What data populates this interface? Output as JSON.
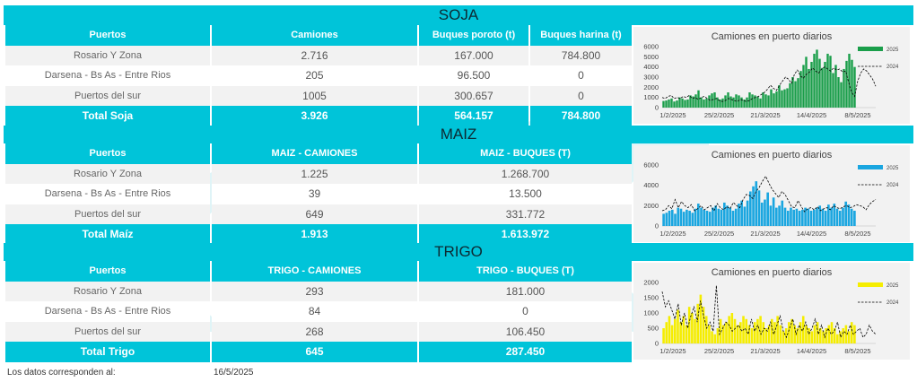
{
  "soja": {
    "title": "SOJA",
    "headers": [
      "Puertos",
      "Camiones",
      "Buques poroto (t)",
      "Buques harina (t)"
    ],
    "rows": [
      [
        "Rosario Y Zona",
        "2.716",
        "167.000",
        "784.800"
      ],
      [
        "Darsena - Bs As - Entre Rios",
        "205",
        "96.500",
        "0"
      ],
      [
        "Puertos del sur",
        "1005",
        "300.657",
        "0"
      ]
    ],
    "total": [
      "Total Soja",
      "3.926",
      "564.157",
      "784.800"
    ]
  },
  "maiz": {
    "title": "MAIZ",
    "headers": [
      "Puertos",
      "MAIZ - CAMIONES",
      "MAIZ - BUQUES (T)"
    ],
    "rows": [
      [
        "Rosario Y Zona",
        "1.225",
        "1.268.700"
      ],
      [
        "Darsena - Bs As - Entre Rios",
        "39",
        "13.500"
      ],
      [
        "Puertos del sur",
        "649",
        "331.772"
      ]
    ],
    "total": [
      "Total Maíz",
      "1.913",
      "1.613.972"
    ]
  },
  "trigo": {
    "title": "TRIGO",
    "headers": [
      "Puertos",
      "TRIGO - CAMIONES",
      "TRIGO - BUQUES (T)"
    ],
    "rows": [
      [
        "Rosario Y Zona",
        "293",
        "181.000"
      ],
      [
        "Darsena - Bs As - Entre Rios",
        "84",
        "0"
      ],
      [
        "Puertos del sur",
        "268",
        "106.450"
      ]
    ],
    "total": [
      "Total Trigo",
      "645",
      "287.450"
    ]
  },
  "footer": {
    "label": "Los datos corresponden al:",
    "date": "16/5/2025"
  },
  "chart_data": [
    {
      "type": "bar",
      "title": "Camiones en puerto diarios",
      "x_ticks": [
        "1/2/2025",
        "25/2/2025",
        "21/3/2025",
        "14/4/2025",
        "8/5/2025"
      ],
      "ylim": [
        0,
        6000
      ],
      "y_ticks": [
        0,
        1000,
        2000,
        3000,
        4000,
        5000,
        6000
      ],
      "legend_position": "top-right",
      "colors": {
        "2025": "#1a9e4a",
        "2024": "#000000"
      },
      "series": [
        {
          "name": "2025",
          "kind": "bar",
          "values": [
            650,
            700,
            800,
            900,
            600,
            700,
            1000,
            900,
            750,
            800,
            1200,
            1100,
            1300,
            1700,
            1000,
            800,
            900,
            1200,
            1400,
            1500,
            1000,
            800,
            900,
            1200,
            1500,
            1100,
            1000,
            1300,
            1200,
            1000,
            800,
            1000,
            1500,
            1300,
            1200,
            1100,
            900,
            1500,
            1300,
            1200,
            1800,
            1400,
            1600,
            2200,
            1700,
            1800,
            1900,
            2400,
            3000,
            2600,
            2900,
            3600,
            4200,
            5000,
            3800,
            4500,
            5300,
            5700,
            4800,
            3900,
            4500,
            5300,
            5100,
            3400,
            4200,
            3000,
            2500,
            3800,
            4600,
            5300,
            4700,
            4000
          ]
        },
        {
          "name": "2024",
          "kind": "line",
          "values": [
            1000,
            900,
            1100,
            1200,
            900,
            1000,
            900,
            1100,
            1000,
            1200,
            900,
            1000,
            800,
            1000,
            1100,
            900,
            700,
            800,
            900,
            700,
            600,
            700,
            900,
            800,
            700,
            600,
            800,
            700,
            600,
            700,
            900,
            1000,
            1100,
            1300,
            1500,
            1800,
            2200,
            1900,
            1700,
            2200,
            2600,
            3000,
            2800,
            2400,
            3300,
            3700,
            3100,
            2900,
            3300,
            3500,
            3900,
            3600,
            3400,
            3800,
            4000,
            3800,
            3600,
            3900,
            3700,
            3800,
            3500,
            3600,
            2500,
            1500,
            1100,
            2600,
            3400,
            3800,
            3600,
            3200,
            2800,
            2100
          ]
        }
      ]
    },
    {
      "type": "bar",
      "title": "Camiones en puerto diarios",
      "x_ticks": [
        "1/2/2025",
        "25/2/2025",
        "21/3/2025",
        "14/4/2025",
        "8/5/2025"
      ],
      "ylim": [
        0,
        6000
      ],
      "y_ticks": [
        0,
        2000,
        4000,
        6000
      ],
      "legend_position": "top-right",
      "colors": {
        "2025": "#1aa6e0",
        "2024": "#000000"
      },
      "series": [
        {
          "name": "2025",
          "kind": "bar",
          "values": [
            1200,
            1300,
            1500,
            1600,
            1200,
            1800,
            1700,
            1400,
            1600,
            1500,
            1300,
            1700,
            2200,
            1800,
            1600,
            1500,
            1400,
            1800,
            2000,
            1700,
            1600,
            2300,
            2000,
            1800,
            1500,
            1700,
            2200,
            2500,
            1900,
            2500,
            3400,
            3900,
            4400,
            3500,
            2300,
            2600,
            3300,
            2000,
            2800,
            1800,
            2000,
            2500,
            1800,
            1500,
            1800,
            1600,
            1700,
            1500,
            1600,
            1800,
            1700,
            1500,
            1600,
            1800,
            2000,
            1700,
            1500,
            2100,
            1800,
            2200,
            1700,
            1500,
            1800,
            2400,
            2100,
            1700,
            1500
          ]
        },
        {
          "name": "2024",
          "kind": "line",
          "values": [
            1500,
            1600,
            2000,
            1700,
            2600,
            1800,
            2400,
            2000,
            1800,
            2100,
            1500,
            1700,
            2000,
            1600,
            1800,
            2000,
            1500,
            2200,
            1800,
            1600,
            1900,
            1700,
            2300,
            2000,
            1800,
            2600,
            3100,
            3000,
            2700,
            3400,
            3800,
            4400,
            4900,
            4200,
            3600,
            3200,
            2800,
            3400,
            3100,
            2500,
            1900,
            1800,
            2500,
            1900,
            1400,
            1700,
            1800,
            1600,
            1900,
            1500,
            1700,
            1800,
            1600,
            2000,
            1800,
            1700,
            1900,
            2000,
            1800,
            1900,
            2100,
            2000,
            1900,
            1600,
            2100,
            2400,
            2600
          ]
        }
      ]
    },
    {
      "type": "bar",
      "title": "Camiones en puerto diarios",
      "x_ticks": [
        "1/2/2025",
        "25/2/2025",
        "21/3/2025",
        "14/4/2025",
        "8/5/2025"
      ],
      "ylim": [
        0,
        2000
      ],
      "y_ticks": [
        0,
        500,
        1000,
        1500,
        2000
      ],
      "legend_position": "top-right",
      "colors": {
        "2025": "#f5ed00",
        "2024": "#000000"
      },
      "series": [
        {
          "name": "2025",
          "kind": "bar",
          "values": [
            500,
            700,
            900,
            600,
            800,
            1100,
            700,
            900,
            600,
            1200,
            1000,
            800,
            1300,
            1600,
            1200,
            900,
            600,
            400,
            300,
            500,
            800,
            600,
            700,
            900,
            1000,
            800,
            600,
            700,
            900,
            800,
            600,
            500,
            700,
            800,
            900,
            700,
            500,
            600,
            800,
            700,
            900,
            600,
            400,
            500,
            700,
            800,
            600,
            500,
            700,
            900,
            600,
            500,
            400,
            600,
            700,
            500,
            400,
            500,
            600,
            700,
            500,
            300,
            400,
            500,
            600,
            400,
            700,
            600
          ]
        },
        {
          "name": "2024",
          "kind": "line",
          "values": [
            1700,
            1200,
            1400,
            1100,
            800,
            1300,
            600,
            1000,
            500,
            900,
            1200,
            700,
            1400,
            900,
            500,
            700,
            400,
            1900,
            300,
            500,
            700,
            600,
            400,
            500,
            600,
            400,
            500,
            300,
            800,
            400,
            600,
            300,
            500,
            400,
            700,
            300,
            600,
            900,
            400,
            200,
            500,
            800,
            300,
            600,
            400,
            700,
            300,
            500,
            800,
            300,
            600,
            200,
            500,
            300,
            400,
            700,
            200,
            400,
            300,
            600,
            300,
            400,
            500,
            200,
            300,
            600,
            400,
            300
          ]
        }
      ]
    }
  ]
}
